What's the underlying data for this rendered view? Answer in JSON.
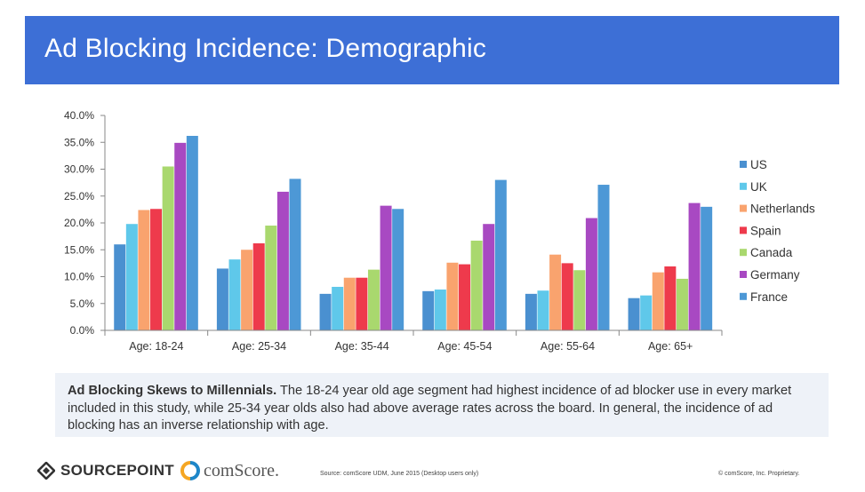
{
  "header": {
    "title": "Ad Blocking Incidence: Demographic"
  },
  "chart_data": {
    "type": "bar",
    "title": "",
    "xlabel": "",
    "ylabel": "",
    "ylim": [
      0,
      40
    ],
    "y_ticks": [
      "0.0%",
      "5.0%",
      "10.0%",
      "15.0%",
      "20.0%",
      "25.0%",
      "30.0%",
      "35.0%",
      "40.0%"
    ],
    "grid": false,
    "legend_position": "right",
    "categories": [
      "Age: 18-24",
      "Age: 25-34",
      "Age: 35-44",
      "Age: 45-54",
      "Age: 55-64",
      "Age: 65+"
    ],
    "series": [
      {
        "name": "US",
        "color": "#4a90d0",
        "values": [
          16.0,
          11.5,
          6.8,
          7.3,
          6.8,
          6.0
        ]
      },
      {
        "name": "UK",
        "color": "#5fc8ea",
        "values": [
          19.8,
          13.2,
          8.1,
          7.6,
          7.4,
          6.5
        ]
      },
      {
        "name": "Netherlands",
        "color": "#f9a36e",
        "values": [
          22.4,
          15.0,
          9.8,
          12.6,
          14.1,
          10.8
        ]
      },
      {
        "name": "Spain",
        "color": "#ee3a4c",
        "values": [
          22.6,
          16.2,
          9.8,
          12.3,
          12.5,
          11.9
        ]
      },
      {
        "name": "Canada",
        "color": "#a9d86e",
        "values": [
          30.5,
          19.5,
          11.3,
          16.7,
          11.2,
          9.6
        ]
      },
      {
        "name": "Germany",
        "color": "#a849c2",
        "values": [
          34.9,
          25.8,
          23.2,
          19.8,
          20.9,
          23.7
        ]
      },
      {
        "name": "France",
        "color": "#4d98d6",
        "values": [
          36.2,
          28.2,
          22.6,
          28.0,
          27.1,
          23.0
        ]
      }
    ]
  },
  "note": {
    "lead": "Ad Blocking Skews to Millennials.",
    "body": " The 18-24 year old age segment had highest incidence of ad blocker use in every market included in this study, while 25-34 year olds also had above average rates across the board. In general, the incidence of ad blocking has an inverse relationship with age."
  },
  "footer": {
    "sourcepoint_logo": "SOURCEPOINT",
    "comscore_logo": "comScore.",
    "source": "Source: comScore UDM, June 2015 (Desktop users only)",
    "copyright": "© comScore, Inc. Proprietary."
  }
}
